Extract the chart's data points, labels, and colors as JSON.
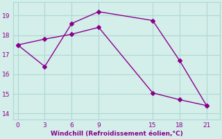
{
  "line1_x": [
    0,
    3,
    6,
    9,
    15,
    18,
    21
  ],
  "line1_y": [
    17.5,
    16.4,
    18.6,
    19.2,
    18.75,
    16.7,
    14.4
  ],
  "line2_x": [
    0,
    3,
    6,
    9,
    15,
    18,
    21
  ],
  "line2_y": [
    17.5,
    17.8,
    18.05,
    18.4,
    15.05,
    14.7,
    14.4
  ],
  "line_color": "#8b008b",
  "bg_color": "#d4eeea",
  "grid_color": "#aed8d2",
  "xlabel": "Windchill (Refroidissement éolien,°C)",
  "xlabel_color": "#8b008b",
  "tick_color": "#8b008b",
  "xlim": [
    -0.5,
    22.5
  ],
  "ylim": [
    13.7,
    19.7
  ],
  "xticks": [
    0,
    3,
    6,
    9,
    15,
    18,
    21
  ],
  "yticks": [
    14,
    15,
    16,
    17,
    18,
    19
  ],
  "markersize": 3,
  "linewidth": 1.0
}
